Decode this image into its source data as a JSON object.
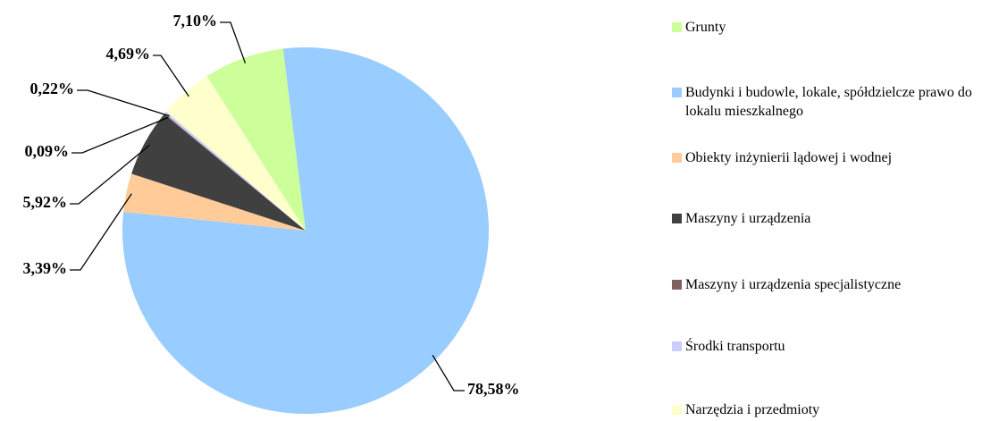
{
  "chart_data": {
    "type": "pie",
    "categories": [
      "Grunty",
      "Budynki i budowle, lokale, spółdzielcze prawo do lokalu mieszkalnego",
      "Obiekty inżynierii lądowej i wodnej",
      "Maszyny i urządzenia",
      "Maszyny i urządzenia specjalistyczne",
      "Środki transportu",
      "Narzędzia i przedmioty"
    ],
    "values": [
      7.1,
      78.58,
      3.39,
      5.92,
      0.09,
      0.22,
      4.69
    ],
    "value_labels": [
      "7,10%",
      "78,58%",
      "3,39%",
      "5,92%",
      "0,09%",
      "0,22%",
      "4,69%"
    ],
    "colors": [
      "#ccff99",
      "#99ccff",
      "#ffcc99",
      "#404040",
      "#7f5f5f",
      "#ccccff",
      "#ffffcc"
    ]
  }
}
